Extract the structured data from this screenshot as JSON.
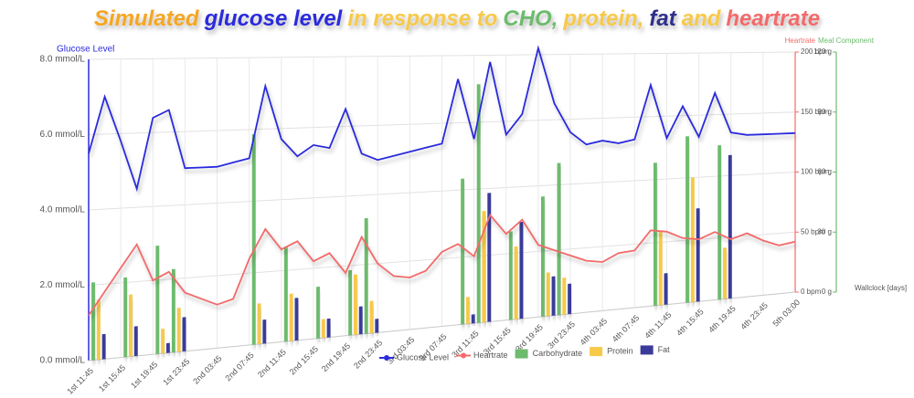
{
  "chart_data": {
    "type": "combo",
    "title_parts": [
      {
        "text": "Simulated",
        "color": "#f5a623"
      },
      {
        "text": "glucose level",
        "color": "#2b2bdc"
      },
      {
        "text": "in response to",
        "color": "#f7c948"
      },
      {
        "text": "CHO,",
        "color": "#6dbb6d"
      },
      {
        "text": "protein,",
        "color": "#f7c948"
      },
      {
        "text": "fat",
        "color": "#2e2e8a"
      },
      {
        "text": "and",
        "color": "#f7c948"
      },
      {
        "text": "heartrate",
        "color": "#f26b6b"
      }
    ],
    "y_label": "Glucose Level",
    "y2_label": "Heartrate",
    "y3_label": "Meal Component",
    "x_label": "Wallclock [days]",
    "categories": [
      "1st 11:45",
      null,
      "1st 15:45",
      null,
      "1st 19:45",
      null,
      "1st 23:45",
      null,
      "2nd 03:45",
      null,
      "2nd 07:45",
      null,
      "2nd 11:45",
      null,
      "2nd 15:45",
      null,
      "2nd 19:45",
      null,
      "2nd 23:45",
      null,
      "3rd 03:45",
      null,
      "3rd 07:45",
      null,
      "3rd 11:45",
      null,
      "3rd 15:45",
      null,
      "3rd 19:45",
      null,
      "3rd 23:45",
      null,
      "4th 03:45",
      null,
      "4th 07:45",
      null,
      "4th 11:45",
      null,
      "4th 15:45",
      null,
      "4th 19:45",
      null,
      "4th 23:45",
      null,
      "5th 03:00"
    ],
    "ylim": [
      0,
      8
    ],
    "yticks": [
      {
        "value": 0,
        "label": "0.0 mmol/L"
      },
      {
        "value": 2,
        "label": "2.0 mmol/L"
      },
      {
        "value": 4,
        "label": "4.0 mmol/L"
      },
      {
        "value": 6,
        "label": "6.0 mmol/L"
      },
      {
        "value": 8,
        "label": "8.0 mmol/L"
      }
    ],
    "y2lim": [
      0,
      200
    ],
    "y2ticks": [
      {
        "value": 0,
        "label": "0 bpm"
      },
      {
        "value": 50,
        "label": "50 bpm"
      },
      {
        "value": 100,
        "label": "100 bpm"
      },
      {
        "value": 150,
        "label": "150 bpm"
      },
      {
        "value": 200,
        "label": "200 bpm"
      }
    ],
    "y3lim": [
      0,
      120
    ],
    "y3ticks": [
      {
        "value": 0,
        "label": "0 g"
      },
      {
        "value": 30,
        "label": "30 g"
      },
      {
        "value": 60,
        "label": "60 g"
      },
      {
        "value": 90,
        "label": "90 g"
      },
      {
        "value": 120,
        "label": "120 g"
      }
    ],
    "grid": true,
    "series": [
      {
        "name": "Glucose Level",
        "type": "line",
        "color": "#2b2bdc",
        "axis": "y",
        "values": [
          5.5,
          7.0,
          5.8,
          4.5,
          6.4,
          6.6,
          5.0,
          5.0,
          5.0,
          5.1,
          5.2,
          7.2,
          5.7,
          5.2,
          5.5,
          5.4,
          6.5,
          5.2,
          5.0,
          5.1,
          5.2,
          5.3,
          5.4,
          7.3,
          5.5,
          7.8,
          5.6,
          6.2,
          8.2,
          6.5,
          5.6,
          5.2,
          5.3,
          5.2,
          5.3,
          7.0,
          5.3,
          6.3,
          5.3,
          6.7,
          5.4,
          5.3,
          5.3,
          5.3,
          5.3
        ]
      },
      {
        "name": "Heartrate",
        "type": "line",
        "color": "#f26b6b",
        "axis": "y2",
        "values": [
          30,
          45,
          60,
          75,
          50,
          55,
          40,
          35,
          30,
          33,
          60,
          80,
          65,
          70,
          55,
          60,
          45,
          70,
          50,
          40,
          38,
          42,
          55,
          60,
          50,
          80,
          65,
          75,
          55,
          50,
          45,
          40,
          38,
          44,
          45,
          60,
          58,
          52,
          50,
          55,
          48,
          52,
          45,
          40,
          42
        ]
      },
      {
        "name": "Carbohydrate",
        "type": "bar",
        "color": "#6dbb6d",
        "axis": "y3",
        "values": [
          31,
          null,
          32,
          null,
          44,
          34,
          null,
          null,
          null,
          null,
          88,
          null,
          40,
          null,
          22,
          null,
          28,
          50,
          null,
          null,
          null,
          null,
          null,
          65,
          107,
          null,
          40,
          null,
          55,
          70,
          null,
          null,
          null,
          null,
          null,
          68,
          null,
          80,
          null,
          75,
          null,
          null,
          null,
          null,
          null
        ]
      },
      {
        "name": "Protein",
        "type": "bar",
        "color": "#f7c948",
        "axis": "y3",
        "values": [
          24,
          null,
          25,
          null,
          10,
          18,
          null,
          null,
          null,
          null,
          17,
          null,
          20,
          null,
          8,
          null,
          26,
          14,
          null,
          null,
          null,
          null,
          null,
          12,
          50,
          null,
          33,
          null,
          20,
          17,
          null,
          null,
          null,
          null,
          null,
          35,
          null,
          60,
          null,
          25,
          null,
          null,
          null,
          null,
          null
        ]
      },
      {
        "name": "Fat",
        "type": "bar",
        "color": "#3a3a9a",
        "axis": "y3",
        "values": [
          10,
          null,
          12,
          null,
          4,
          14,
          null,
          null,
          null,
          null,
          10,
          null,
          18,
          null,
          8,
          null,
          12,
          6,
          null,
          null,
          null,
          null,
          null,
          4,
          58,
          null,
          44,
          null,
          18,
          14,
          null,
          null,
          null,
          null,
          null,
          15,
          null,
          45,
          null,
          70,
          null,
          null,
          null,
          null,
          null
        ]
      }
    ]
  }
}
